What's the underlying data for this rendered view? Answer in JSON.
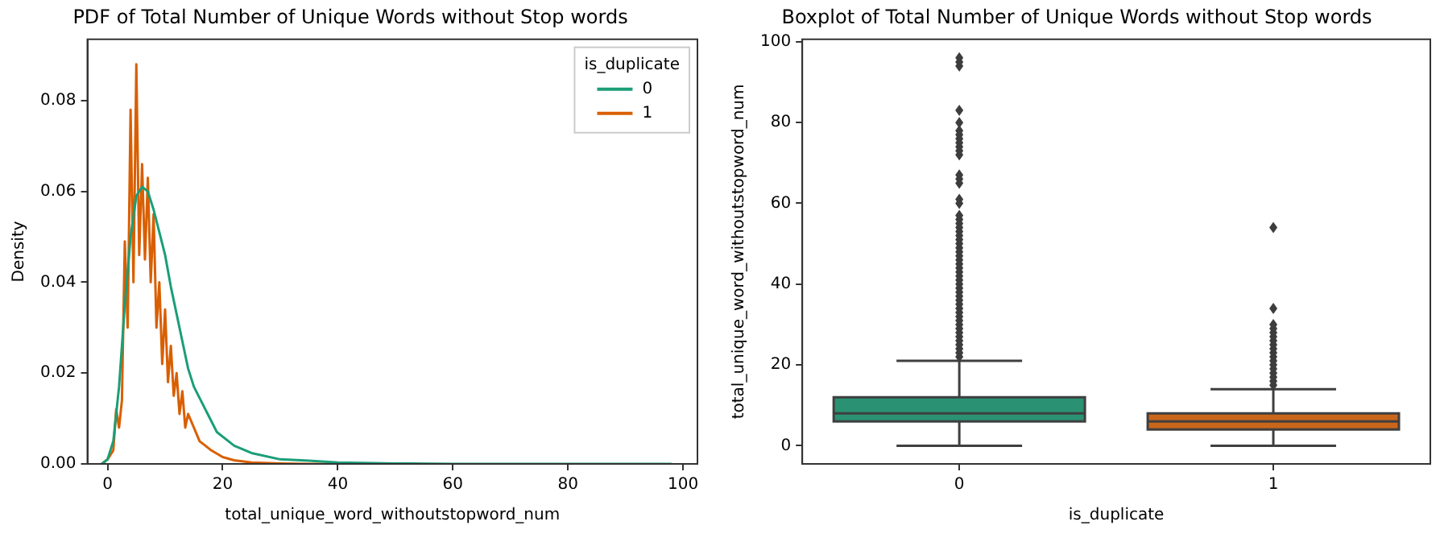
{
  "chart_data": [
    {
      "type": "line",
      "title": "PDF of Total Number of Unique Words without Stop words",
      "xlabel": "total_unique_word_withoutstopword_num",
      "ylabel": "Density",
      "legend_title": "is_duplicate",
      "legend": "top right",
      "xlim": [
        -3.5,
        102.5
      ],
      "xticks": [
        0,
        20,
        40,
        60,
        80,
        100
      ],
      "ylim": [
        0,
        0.0935
      ],
      "yticks": [
        {
          "value": 0,
          "label": "0.00"
        },
        {
          "value": 0.02,
          "label": "0.02"
        },
        {
          "value": 0.04,
          "label": "0.04"
        },
        {
          "value": 0.06,
          "label": "0.06"
        },
        {
          "value": 0.08,
          "label": "0.08"
        }
      ],
      "series": [
        {
          "name": "0",
          "color": "#1b9e77",
          "x": [
            -1,
            0,
            1,
            2,
            3,
            4,
            5,
            6,
            7,
            8,
            9,
            10,
            11,
            12,
            13,
            14,
            15,
            17,
            19,
            22,
            25,
            30,
            35,
            40,
            50,
            60,
            80,
            98
          ],
          "values": [
            0,
            0.001,
            0.005,
            0.017,
            0.035,
            0.05,
            0.059,
            0.061,
            0.06,
            0.056,
            0.051,
            0.046,
            0.039,
            0.033,
            0.027,
            0.021,
            0.017,
            0.012,
            0.007,
            0.004,
            0.0024,
            0.001,
            0.0007,
            0.0003,
            0.0001,
            0,
            0,
            0
          ]
        },
        {
          "name": "1",
          "color": "#d95f02",
          "x": [
            -1,
            0,
            1,
            1.5,
            2,
            2.5,
            3,
            3.5,
            4,
            4.5,
            5,
            5.5,
            6,
            6.5,
            7,
            7.5,
            8,
            8.5,
            9,
            9.5,
            10,
            10.5,
            11,
            11.5,
            12,
            12.5,
            13,
            13.5,
            14,
            15,
            16,
            17,
            18,
            20,
            22,
            25,
            30,
            35,
            40,
            54
          ],
          "values": [
            0,
            0.001,
            0.003,
            0.012,
            0.008,
            0.014,
            0.049,
            0.03,
            0.078,
            0.04,
            0.088,
            0.046,
            0.066,
            0.045,
            0.063,
            0.04,
            0.055,
            0.03,
            0.04,
            0.022,
            0.034,
            0.018,
            0.026,
            0.015,
            0.02,
            0.011,
            0.016,
            0.008,
            0.011,
            0.008,
            0.005,
            0.004,
            0.003,
            0.0015,
            0.0008,
            0.0003,
            0.0001,
            0,
            0,
            0
          ]
        }
      ]
    },
    {
      "type": "box",
      "title": "Boxplot of Total Number of Unique Words without Stop words",
      "xlabel": "is_duplicate",
      "ylabel": "total_unique_word_withoutstopword_num",
      "categories": [
        "0",
        "1"
      ],
      "colors": [
        "#2a9273",
        "#c9661b"
      ],
      "ylim": [
        -4.5,
        100.6
      ],
      "yticks": [
        0,
        20,
        40,
        60,
        80,
        100
      ],
      "boxes": [
        {
          "low": 0,
          "q1": 6,
          "median": 8,
          "q3": 12,
          "high": 21,
          "outliers": [
            22,
            23,
            24,
            25,
            26,
            27,
            28,
            29,
            30,
            31,
            32,
            33,
            34,
            35,
            36,
            37,
            38,
            39,
            40,
            41,
            42,
            43,
            44,
            45,
            46,
            47,
            48,
            49,
            50,
            51,
            52,
            53,
            54,
            55,
            56,
            57,
            60,
            61,
            65,
            66,
            67,
            72,
            73,
            74,
            75,
            76,
            77,
            78,
            80,
            83,
            94,
            95,
            96
          ]
        },
        {
          "low": 0,
          "q1": 4,
          "median": 6,
          "q3": 8,
          "high": 14,
          "outliers": [
            15,
            16,
            17,
            18,
            19,
            20,
            21,
            22,
            23,
            24,
            25,
            26,
            27,
            28,
            29,
            30,
            34,
            54
          ]
        }
      ]
    }
  ]
}
